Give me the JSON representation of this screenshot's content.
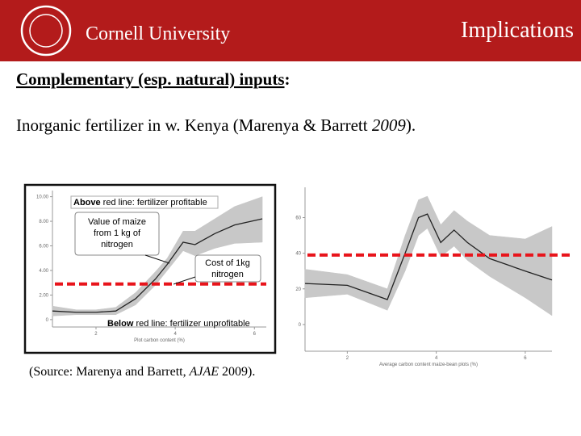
{
  "header": {
    "institution": "Cornell University",
    "title": "Implications"
  },
  "heading": {
    "underlined": "Complementary (esp. natural) inputs",
    "rest": ":"
  },
  "text": {
    "before": "Inorganic fertilizer in w. Kenya (Marenya & Barrett ",
    "year": "2009",
    "after": ")."
  },
  "charts": [
    {
      "type": "line",
      "x_label": "Plot carbon content (%)",
      "x": [
        0.9,
        1.5,
        2,
        2.5,
        3,
        3.5,
        3.8,
        4.2,
        4.5,
        5,
        5.5,
        6.2
      ],
      "values": [
        0.7,
        0.6,
        0.6,
        0.7,
        1.7,
        3.3,
        4.5,
        6.3,
        6.1,
        7,
        7.7,
        8.2
      ],
      "lower": [
        0.3,
        0.4,
        0.4,
        0.4,
        1.2,
        2.8,
        4,
        5.6,
        5.2,
        5.8,
        6.2,
        6.3
      ],
      "upper": [
        1.1,
        0.8,
        0.8,
        1,
        2.2,
        3.9,
        5,
        7.2,
        7.2,
        8.2,
        9.2,
        10
      ],
      "threshold": 2.9,
      "color": "#222222",
      "band_color": "#c8c8c8",
      "threshold_color": "#e8141b",
      "xlim": [
        0.9,
        6.3
      ],
      "ylim": [
        -0.6,
        10.5
      ],
      "xticks": [
        2,
        4,
        6
      ],
      "yticks": [
        0,
        {
          "value": 2,
          "label": "2.00"
        },
        {
          "value": 4,
          "label": "4.00"
        },
        {
          "value": 6,
          "label": "6.00"
        },
        {
          "value": 8,
          "label": "8.00"
        },
        {
          "value": 10,
          "label": "10.00"
        }
      ]
    },
    {
      "type": "line",
      "x_label": "Average carbon content maize-bean plots (%)",
      "x": [
        1.05,
        2,
        2.9,
        3.3,
        3.6,
        3.8,
        4.1,
        4.4,
        4.7,
        5.2,
        6,
        6.6
      ],
      "values": [
        23,
        22,
        14,
        40,
        60,
        62,
        46,
        53,
        46,
        37,
        30,
        25
      ],
      "lower": [
        15,
        17,
        8,
        30,
        50,
        54,
        38,
        44,
        36,
        27,
        15,
        5
      ],
      "upper": [
        31,
        28,
        20,
        50,
        70,
        72,
        56,
        64,
        58,
        50,
        48,
        55
      ],
      "threshold": 39,
      "color": "#222222",
      "band_color": "#c8c8c8",
      "threshold_color": "#e8141b",
      "xlim": [
        1.05,
        6.6
      ],
      "ylim": [
        -15,
        77
      ],
      "xticks": [
        2,
        4,
        6
      ],
      "yticks": [
        0,
        20,
        40,
        60
      ]
    }
  ],
  "annotations": {
    "above_bold": "Above",
    "above_rest": " red line: fertilizer profitable",
    "value_lines": [
      "Value of maize",
      "from 1 kg of",
      "nitrogen"
    ],
    "cost_lines": [
      "Cost of 1kg",
      "nitrogen"
    ],
    "below_bold": "Below",
    "below_rest": " red line: fertilizer unprofitable"
  },
  "source": {
    "before": "(Source: Marenya and Barrett, ",
    "journal": "AJAE",
    "after": " 2009)."
  }
}
